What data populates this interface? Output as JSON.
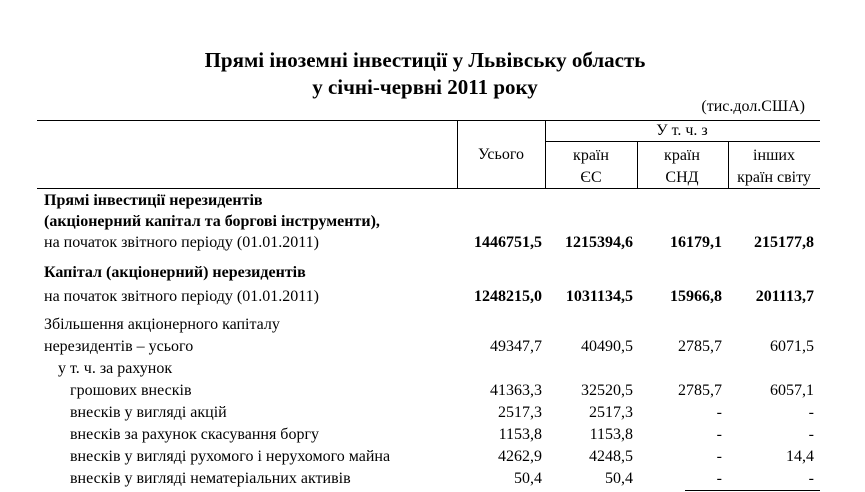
{
  "header": {
    "title": [
      "Прямі іноземні інвестиції у Львівську область",
      "у січні-червні 2011 року"
    ],
    "unit": "(тис.дол.США)"
  },
  "table": {
    "columns": {
      "total": "Усього",
      "group": "У т. ч. з",
      "sub": [
        [
          "країн",
          "ЄС"
        ],
        [
          "країн",
          "СНД"
        ],
        [
          "інших",
          "країн світу"
        ]
      ]
    },
    "rows": [
      {
        "label": [
          "Прямі інвестиції нерезидентів",
          "(акціонерний капітал та боргові інструменти),",
          "на початок звітного періоду (01.01.2011)"
        ],
        "values": [
          "1446751,5",
          "1215394,6",
          "16179,1",
          "215177,8"
        ]
      },
      {
        "label": [
          "Капітал (акціонерний) нерезидентів",
          "на початок звітного періоду (01.01.2011)"
        ],
        "values": [
          "1248215,0",
          "1031134,5",
          "15966,8",
          "201113,7"
        ]
      },
      {
        "label": [
          "Збільшення акціонерного капіталу",
          "нерезидентів – усього"
        ],
        "values": [
          "49347,7",
          "40490,5",
          "2785,7",
          "6071,5"
        ]
      },
      {
        "label": [
          "у т. ч. за рахунок"
        ]
      },
      {
        "label": [
          "грошових внесків"
        ],
        "values": [
          "41363,3",
          "32520,5",
          "2785,7",
          "6057,1"
        ]
      },
      {
        "label": [
          "внесків у вигляді акцій"
        ],
        "values": [
          "2517,3",
          "2517,3",
          "-",
          "-"
        ]
      },
      {
        "label": [
          "внесків за рахунок скасування боргу"
        ],
        "values": [
          "1153,8",
          "1153,8",
          "-",
          "-"
        ]
      },
      {
        "label": [
          "внесків у вигляді рухомого і нерухомого майна"
        ],
        "values": [
          "4262,9",
          "4248,5",
          "-",
          "14,4"
        ]
      },
      {
        "label": [
          "внесків у вигляді нематеріальних активів"
        ],
        "values": [
          "50,4",
          "50,4",
          "-",
          "-"
        ]
      }
    ]
  }
}
